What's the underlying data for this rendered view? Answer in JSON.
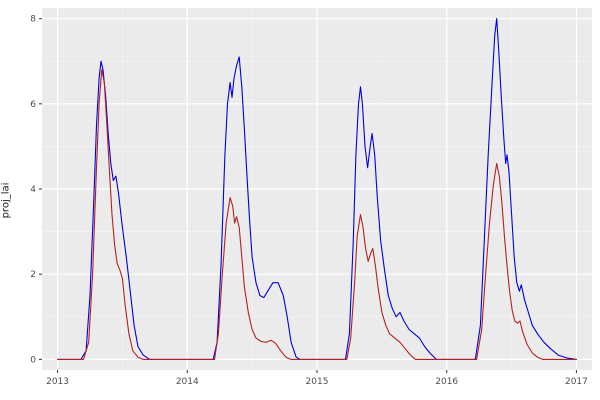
{
  "figure": {
    "y_axis_label": "proj_lai"
  },
  "colors": {
    "background": "#FFFFFF",
    "panel_background": "#EBEBEB",
    "grid_major": "#FFFFFF",
    "grid_minor": "#F4F4F4",
    "axis_text": "#4D4D4D",
    "tick_mark": "#333333",
    "series_blue": "#0000E0",
    "series_red": "#B22222"
  },
  "chart_data": {
    "type": "line",
    "title": "",
    "xlabel": "",
    "ylabel": "proj_lai",
    "xlim": [
      2012.88,
      2017.12
    ],
    "ylim": [
      -0.25,
      8.25
    ],
    "x_ticks": [
      2013,
      2014,
      2015,
      2016,
      2017
    ],
    "y_ticks": [
      0,
      2,
      4,
      6,
      8
    ],
    "x_minor_ticks": [
      2013.5,
      2014.5,
      2015.5,
      2016.5
    ],
    "y_minor_ticks": [
      1,
      3,
      5,
      7
    ],
    "grid": true,
    "legend": "none",
    "series": [
      {
        "name": "blue-line",
        "color": "#0000E0",
        "points": [
          [
            2013.0,
            0
          ],
          [
            2013.18,
            0
          ],
          [
            2013.22,
            0.2
          ],
          [
            2013.25,
            1.5
          ],
          [
            2013.28,
            3.8
          ],
          [
            2013.3,
            5.5
          ],
          [
            2013.32,
            6.6
          ],
          [
            2013.335,
            7.0
          ],
          [
            2013.35,
            6.8
          ],
          [
            2013.37,
            6.2
          ],
          [
            2013.39,
            5.3
          ],
          [
            2013.41,
            4.6
          ],
          [
            2013.43,
            4.2
          ],
          [
            2013.45,
            4.3
          ],
          [
            2013.47,
            3.9
          ],
          [
            2013.5,
            3.1
          ],
          [
            2013.53,
            2.4
          ],
          [
            2013.56,
            1.6
          ],
          [
            2013.59,
            0.8
          ],
          [
            2013.62,
            0.3
          ],
          [
            2013.66,
            0.1
          ],
          [
            2013.71,
            0
          ],
          [
            2014.2,
            0
          ],
          [
            2014.23,
            0.4
          ],
          [
            2014.26,
            2.2
          ],
          [
            2014.29,
            4.8
          ],
          [
            2014.31,
            6.0
          ],
          [
            2014.33,
            6.5
          ],
          [
            2014.345,
            6.15
          ],
          [
            2014.36,
            6.6
          ],
          [
            2014.38,
            6.9
          ],
          [
            2014.4,
            7.1
          ],
          [
            2014.42,
            6.4
          ],
          [
            2014.44,
            5.4
          ],
          [
            2014.46,
            4.3
          ],
          [
            2014.48,
            3.3
          ],
          [
            2014.5,
            2.4
          ],
          [
            2014.53,
            1.8
          ],
          [
            2014.56,
            1.5
          ],
          [
            2014.59,
            1.45
          ],
          [
            2014.62,
            1.6
          ],
          [
            2014.66,
            1.8
          ],
          [
            2014.7,
            1.8
          ],
          [
            2014.74,
            1.5
          ],
          [
            2014.77,
            1.0
          ],
          [
            2014.8,
            0.4
          ],
          [
            2014.84,
            0.05
          ],
          [
            2014.87,
            0
          ],
          [
            2015.22,
            0
          ],
          [
            2015.25,
            0.6
          ],
          [
            2015.28,
            2.8
          ],
          [
            2015.3,
            4.8
          ],
          [
            2015.32,
            6.0
          ],
          [
            2015.335,
            6.4
          ],
          [
            2015.35,
            6.0
          ],
          [
            2015.37,
            5.0
          ],
          [
            2015.39,
            4.5
          ],
          [
            2015.41,
            5.0
          ],
          [
            2015.425,
            5.3
          ],
          [
            2015.445,
            4.8
          ],
          [
            2015.465,
            3.8
          ],
          [
            2015.49,
            2.8
          ],
          [
            2015.52,
            2.1
          ],
          [
            2015.55,
            1.5
          ],
          [
            2015.58,
            1.2
          ],
          [
            2015.61,
            1.0
          ],
          [
            2015.64,
            1.1
          ],
          [
            2015.67,
            0.9
          ],
          [
            2015.71,
            0.7
          ],
          [
            2015.75,
            0.6
          ],
          [
            2015.79,
            0.5
          ],
          [
            2015.83,
            0.3
          ],
          [
            2015.87,
            0.15
          ],
          [
            2015.92,
            0
          ],
          [
            2016.22,
            0
          ],
          [
            2016.26,
            0.8
          ],
          [
            2016.29,
            2.8
          ],
          [
            2016.32,
            4.8
          ],
          [
            2016.35,
            6.5
          ],
          [
            2016.37,
            7.6
          ],
          [
            2016.385,
            8.0
          ],
          [
            2016.4,
            7.3
          ],
          [
            2016.42,
            6.2
          ],
          [
            2016.44,
            5.2
          ],
          [
            2016.455,
            4.6
          ],
          [
            2016.465,
            4.8
          ],
          [
            2016.48,
            4.4
          ],
          [
            2016.5,
            3.4
          ],
          [
            2016.52,
            2.4
          ],
          [
            2016.54,
            1.8
          ],
          [
            2016.56,
            1.6
          ],
          [
            2016.575,
            1.75
          ],
          [
            2016.6,
            1.4
          ],
          [
            2016.63,
            1.1
          ],
          [
            2016.66,
            0.8
          ],
          [
            2016.7,
            0.6
          ],
          [
            2016.75,
            0.4
          ],
          [
            2016.8,
            0.25
          ],
          [
            2016.86,
            0.1
          ],
          [
            2016.93,
            0.03
          ],
          [
            2017.0,
            0
          ]
        ]
      },
      {
        "name": "red-line",
        "color": "#B22222",
        "points": [
          [
            2013.0,
            0
          ],
          [
            2013.2,
            0
          ],
          [
            2013.24,
            0.4
          ],
          [
            2013.27,
            2.0
          ],
          [
            2013.3,
            4.5
          ],
          [
            2013.32,
            6.0
          ],
          [
            2013.34,
            6.8
          ],
          [
            2013.36,
            6.5
          ],
          [
            2013.38,
            5.5
          ],
          [
            2013.4,
            4.4
          ],
          [
            2013.42,
            3.4
          ],
          [
            2013.44,
            2.7
          ],
          [
            2013.46,
            2.25
          ],
          [
            2013.48,
            2.1
          ],
          [
            2013.5,
            1.9
          ],
          [
            2013.52,
            1.3
          ],
          [
            2013.55,
            0.6
          ],
          [
            2013.58,
            0.2
          ],
          [
            2013.62,
            0.05
          ],
          [
            2013.66,
            0
          ],
          [
            2014.21,
            0
          ],
          [
            2014.24,
            0.6
          ],
          [
            2014.27,
            2.0
          ],
          [
            2014.3,
            3.2
          ],
          [
            2014.33,
            3.8
          ],
          [
            2014.35,
            3.6
          ],
          [
            2014.365,
            3.2
          ],
          [
            2014.38,
            3.35
          ],
          [
            2014.4,
            3.1
          ],
          [
            2014.42,
            2.4
          ],
          [
            2014.44,
            1.7
          ],
          [
            2014.47,
            1.1
          ],
          [
            2014.5,
            0.7
          ],
          [
            2014.53,
            0.5
          ],
          [
            2014.57,
            0.42
          ],
          [
            2014.61,
            0.4
          ],
          [
            2014.645,
            0.45
          ],
          [
            2014.68,
            0.38
          ],
          [
            2014.72,
            0.2
          ],
          [
            2014.76,
            0.05
          ],
          [
            2014.8,
            0
          ],
          [
            2015.23,
            0
          ],
          [
            2015.26,
            0.5
          ],
          [
            2015.29,
            1.8
          ],
          [
            2015.31,
            2.9
          ],
          [
            2015.335,
            3.4
          ],
          [
            2015.355,
            3.1
          ],
          [
            2015.375,
            2.6
          ],
          [
            2015.395,
            2.3
          ],
          [
            2015.415,
            2.5
          ],
          [
            2015.43,
            2.6
          ],
          [
            2015.45,
            2.2
          ],
          [
            2015.47,
            1.7
          ],
          [
            2015.5,
            1.1
          ],
          [
            2015.53,
            0.8
          ],
          [
            2015.56,
            0.6
          ],
          [
            2015.6,
            0.5
          ],
          [
            2015.64,
            0.4
          ],
          [
            2015.68,
            0.25
          ],
          [
            2015.72,
            0.1
          ],
          [
            2015.76,
            0
          ],
          [
            2016.23,
            0
          ],
          [
            2016.27,
            0.7
          ],
          [
            2016.3,
            2.0
          ],
          [
            2016.33,
            3.2
          ],
          [
            2016.36,
            4.1
          ],
          [
            2016.385,
            4.6
          ],
          [
            2016.405,
            4.3
          ],
          [
            2016.425,
            3.7
          ],
          [
            2016.445,
            2.9
          ],
          [
            2016.465,
            2.2
          ],
          [
            2016.485,
            1.6
          ],
          [
            2016.505,
            1.15
          ],
          [
            2016.525,
            0.9
          ],
          [
            2016.545,
            0.85
          ],
          [
            2016.565,
            0.9
          ],
          [
            2016.585,
            0.65
          ],
          [
            2016.62,
            0.35
          ],
          [
            2016.66,
            0.15
          ],
          [
            2016.7,
            0.05
          ],
          [
            2016.74,
            0
          ],
          [
            2017.0,
            0
          ]
        ]
      }
    ]
  }
}
